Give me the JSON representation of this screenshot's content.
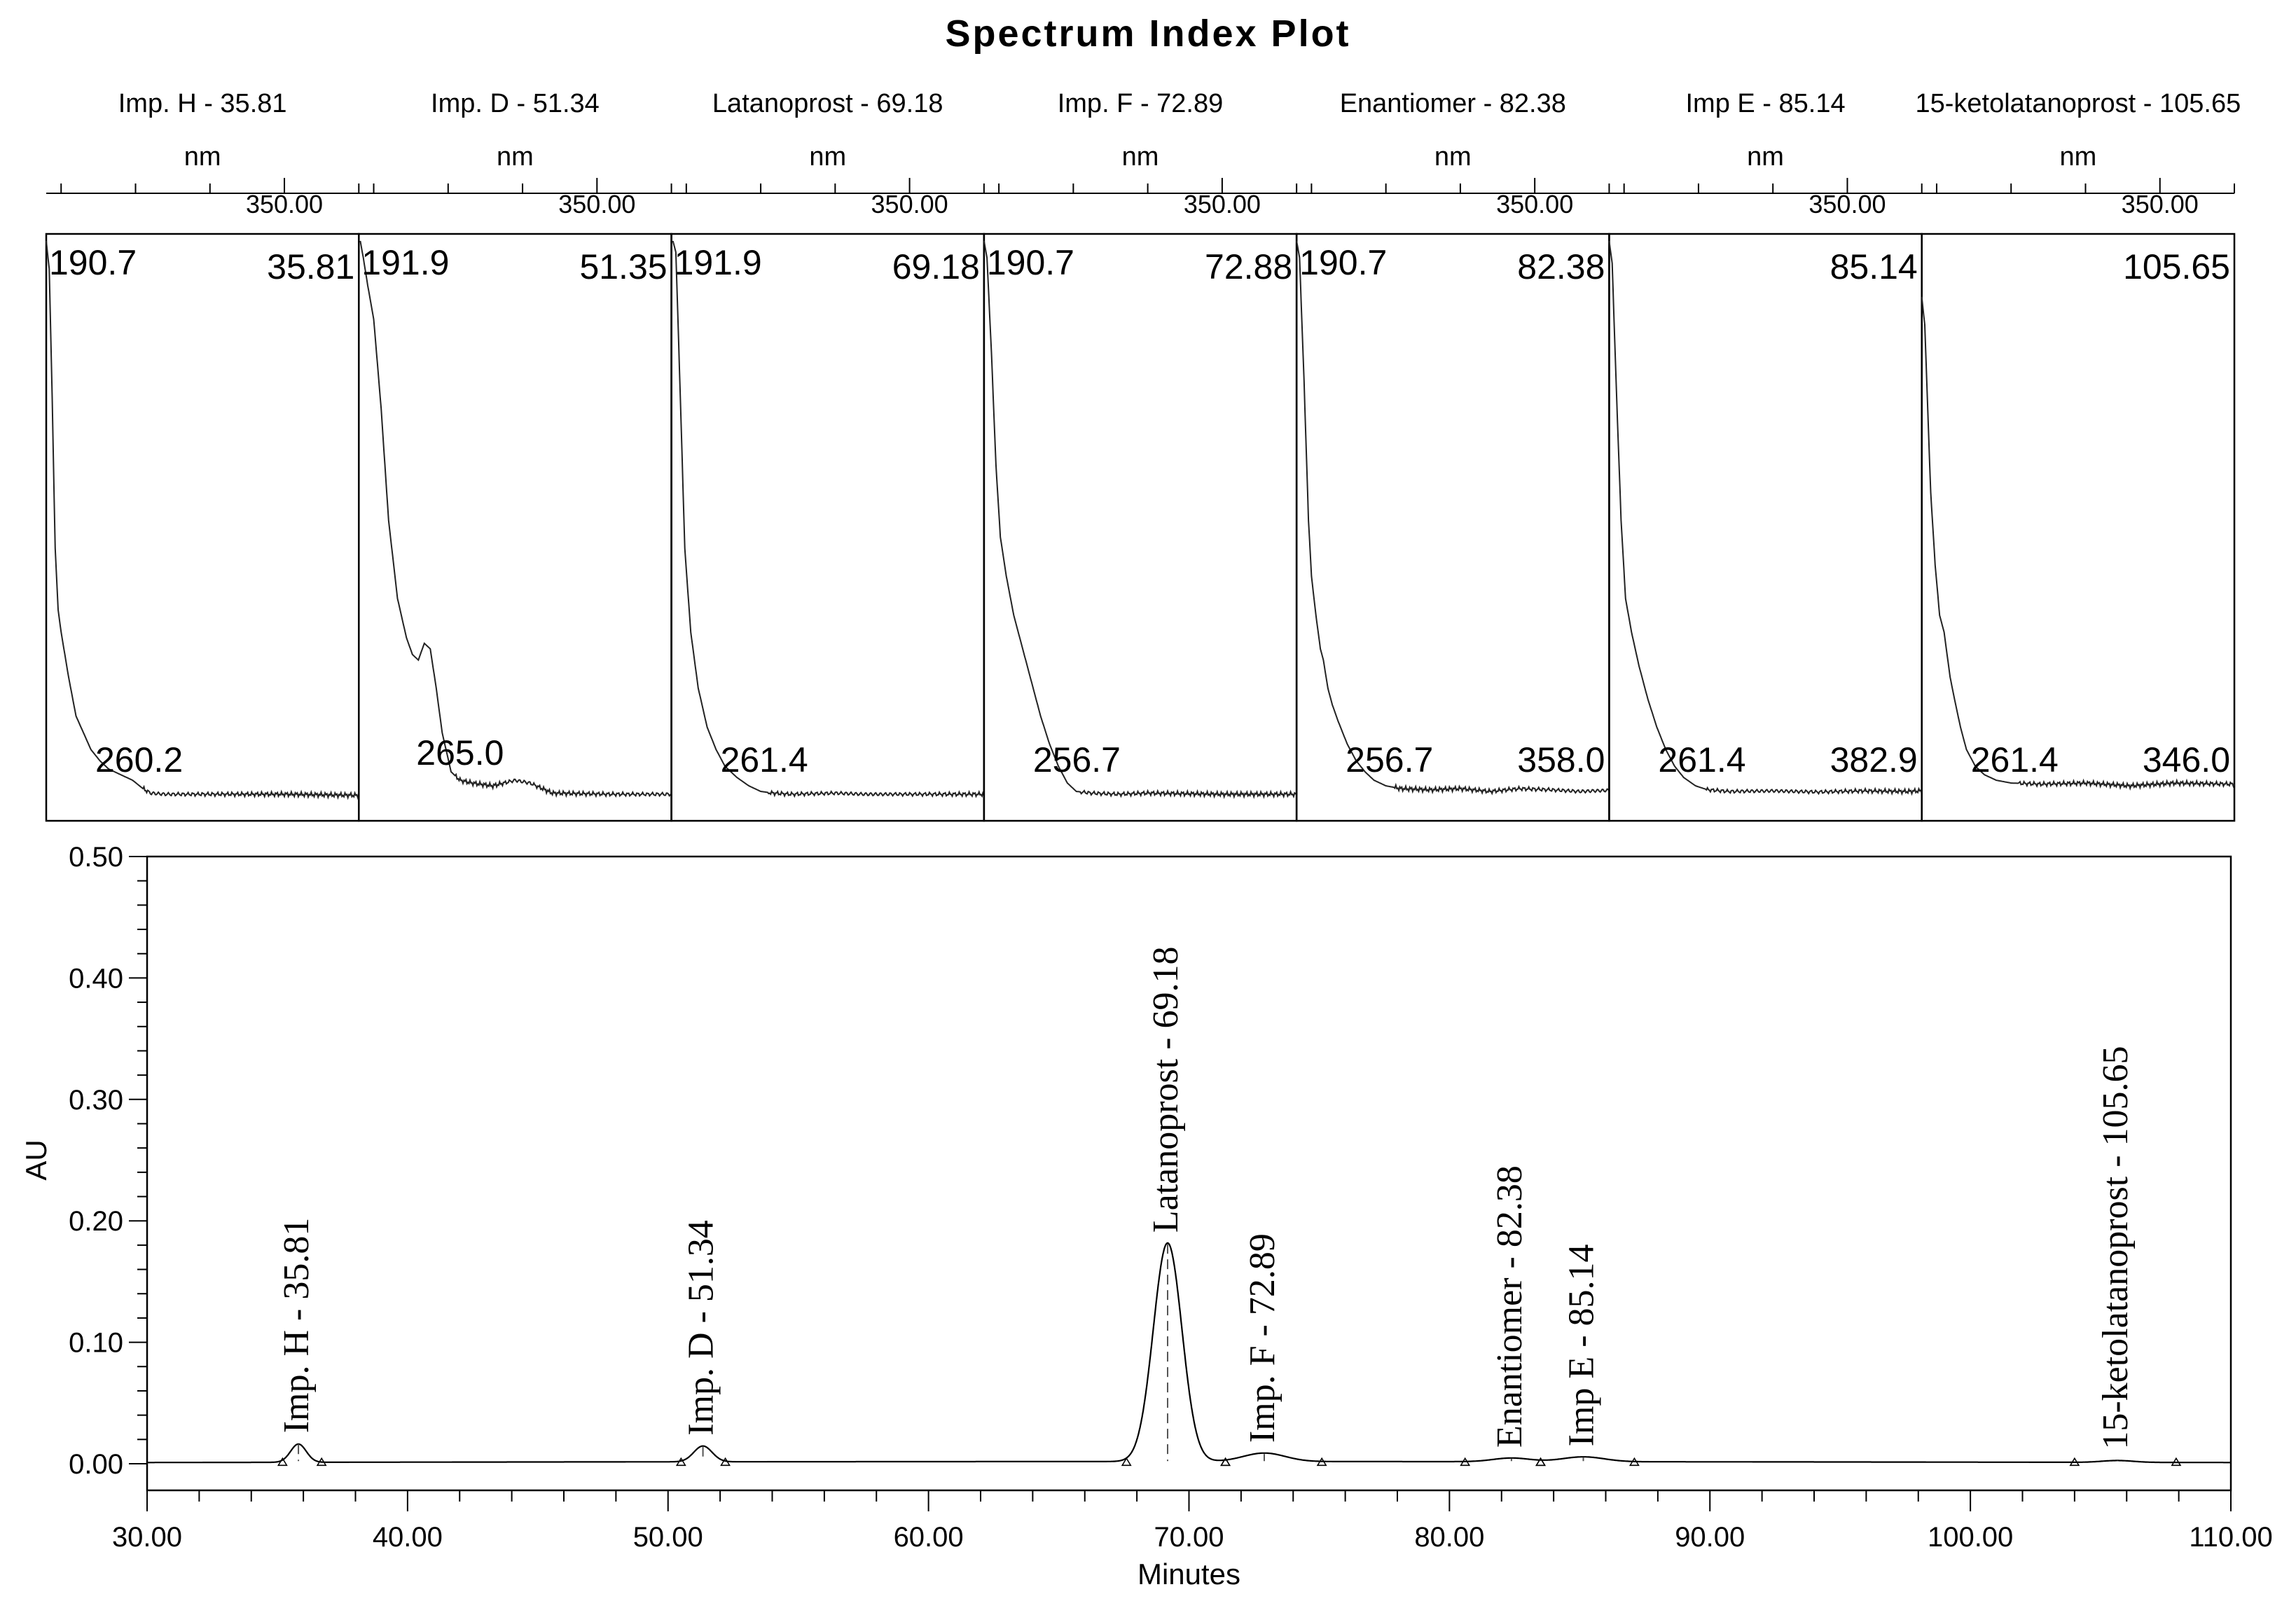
{
  "title": "Spectrum Index Plot",
  "spectra": {
    "unit": "nm",
    "tick_label": "350.00",
    "panels": [
      {
        "header": "Imp. H - 35.81",
        "corner_left": "190.7",
        "corner_right": "35.81",
        "peaks": [
          "260.2"
        ],
        "curve": [
          [
            190,
            1.0
          ],
          [
            192,
            0.95
          ],
          [
            194,
            0.72
          ],
          [
            196,
            0.45
          ],
          [
            198,
            0.34
          ],
          [
            200,
            0.3
          ],
          [
            205,
            0.22
          ],
          [
            210,
            0.15
          ],
          [
            215,
            0.12
          ],
          [
            220,
            0.09
          ],
          [
            226,
            0.07
          ],
          [
            232,
            0.055
          ],
          [
            240,
            0.045
          ],
          [
            248,
            0.035
          ],
          [
            255,
            0.02
          ],
          [
            260,
            0.012
          ],
          [
            270,
            0.01
          ],
          [
            300,
            0.01
          ],
          [
            350,
            0.01
          ],
          [
            400,
            0.008
          ]
        ]
      },
      {
        "header": "Imp. D - 51.34",
        "corner_left": "191.9",
        "corner_right": "51.35",
        "peaks": [
          "265.0"
        ],
        "curve": [
          [
            191,
            1.0
          ],
          [
            193,
            0.97
          ],
          [
            196,
            0.92
          ],
          [
            200,
            0.86
          ],
          [
            205,
            0.7
          ],
          [
            210,
            0.5
          ],
          [
            216,
            0.36
          ],
          [
            222,
            0.29
          ],
          [
            226,
            0.26
          ],
          [
            230,
            0.25
          ],
          [
            234,
            0.28
          ],
          [
            238,
            0.27
          ],
          [
            242,
            0.2
          ],
          [
            246,
            0.12
          ],
          [
            252,
            0.05
          ],
          [
            258,
            0.035
          ],
          [
            266,
            0.03
          ],
          [
            280,
            0.025
          ],
          [
            295,
            0.035
          ],
          [
            305,
            0.03
          ],
          [
            320,
            0.012
          ],
          [
            360,
            0.01
          ],
          [
            400,
            0.01
          ]
        ]
      },
      {
        "header": "Latanoprost - 69.18",
        "corner_left": "191.9",
        "corner_right": "69.18",
        "peaks": [
          "261.4"
        ],
        "curve": [
          [
            191,
            1.0
          ],
          [
            193,
            0.98
          ],
          [
            196,
            0.72
          ],
          [
            199,
            0.45
          ],
          [
            203,
            0.3
          ],
          [
            208,
            0.2
          ],
          [
            214,
            0.13
          ],
          [
            220,
            0.09
          ],
          [
            226,
            0.06
          ],
          [
            234,
            0.04
          ],
          [
            242,
            0.025
          ],
          [
            250,
            0.015
          ],
          [
            258,
            0.012
          ],
          [
            270,
            0.01
          ],
          [
            300,
            0.012
          ],
          [
            320,
            0.01
          ],
          [
            350,
            0.01
          ],
          [
            400,
            0.01
          ]
        ]
      },
      {
        "header": "Imp. F - 72.89",
        "corner_left": "190.7",
        "corner_right": "72.88",
        "peaks": [
          "256.7"
        ],
        "curve": [
          [
            190,
            1.0
          ],
          [
            192,
            0.97
          ],
          [
            195,
            0.8
          ],
          [
            198,
            0.6
          ],
          [
            201,
            0.47
          ],
          [
            205,
            0.4
          ],
          [
            210,
            0.33
          ],
          [
            216,
            0.27
          ],
          [
            222,
            0.21
          ],
          [
            228,
            0.15
          ],
          [
            234,
            0.1
          ],
          [
            240,
            0.06
          ],
          [
            246,
            0.03
          ],
          [
            252,
            0.015
          ],
          [
            262,
            0.012
          ],
          [
            280,
            0.01
          ],
          [
            300,
            0.012
          ],
          [
            350,
            0.01
          ],
          [
            400,
            0.01
          ]
        ]
      },
      {
        "header": "Enantiomer - 82.38",
        "corner_left": "190.7",
        "corner_right": "82.38",
        "peaks": [
          "256.7",
          "358.0"
        ],
        "curve": [
          [
            190,
            1.0
          ],
          [
            192,
            0.97
          ],
          [
            195,
            0.75
          ],
          [
            198,
            0.5
          ],
          [
            200,
            0.4
          ],
          [
            203,
            0.33
          ],
          [
            206,
            0.27
          ],
          [
            208,
            0.25
          ],
          [
            211,
            0.2
          ],
          [
            214,
            0.17
          ],
          [
            218,
            0.14
          ],
          [
            224,
            0.1
          ],
          [
            230,
            0.07
          ],
          [
            236,
            0.05
          ],
          [
            242,
            0.035
          ],
          [
            250,
            0.025
          ],
          [
            260,
            0.02
          ],
          [
            280,
            0.018
          ],
          [
            300,
            0.02
          ],
          [
            320,
            0.015
          ],
          [
            340,
            0.02
          ],
          [
            360,
            0.018
          ],
          [
            380,
            0.015
          ],
          [
            400,
            0.017
          ]
        ]
      },
      {
        "header": "Imp E - 85.14",
        "corner_left": "",
        "corner_right": "85.14",
        "peaks": [
          "261.4",
          "382.9"
        ],
        "curve": [
          [
            190,
            1.0
          ],
          [
            192,
            0.96
          ],
          [
            195,
            0.72
          ],
          [
            198,
            0.5
          ],
          [
            201,
            0.36
          ],
          [
            205,
            0.3
          ],
          [
            210,
            0.24
          ],
          [
            216,
            0.18
          ],
          [
            222,
            0.13
          ],
          [
            228,
            0.09
          ],
          [
            234,
            0.06
          ],
          [
            240,
            0.04
          ],
          [
            248,
            0.025
          ],
          [
            256,
            0.018
          ],
          [
            270,
            0.015
          ],
          [
            300,
            0.016
          ],
          [
            330,
            0.014
          ],
          [
            360,
            0.016
          ],
          [
            390,
            0.015
          ],
          [
            400,
            0.016
          ]
        ]
      },
      {
        "header": "15-ketolatanoprost - 105.65",
        "corner_left": "",
        "corner_right": "105.65",
        "peaks": [
          "261.4",
          "346.0"
        ],
        "curve": [
          [
            190,
            0.9
          ],
          [
            192,
            0.85
          ],
          [
            194,
            0.7
          ],
          [
            196,
            0.55
          ],
          [
            199,
            0.42
          ],
          [
            202,
            0.33
          ],
          [
            205,
            0.3
          ],
          [
            207,
            0.26
          ],
          [
            209,
            0.22
          ],
          [
            212,
            0.18
          ],
          [
            216,
            0.13
          ],
          [
            220,
            0.09
          ],
          [
            226,
            0.06
          ],
          [
            232,
            0.045
          ],
          [
            240,
            0.035
          ],
          [
            250,
            0.03
          ],
          [
            270,
            0.028
          ],
          [
            300,
            0.03
          ],
          [
            330,
            0.025
          ],
          [
            360,
            0.03
          ],
          [
            400,
            0.028
          ]
        ]
      }
    ]
  },
  "chart_data": {
    "type": "line",
    "xlabel": "Minutes",
    "ylabel": "AU",
    "xlim": [
      30.0,
      110.0
    ],
    "ylim": [
      0.0,
      0.5
    ],
    "xticks": [
      "30.00",
      "40.00",
      "50.00",
      "60.00",
      "70.00",
      "80.00",
      "90.00",
      "100.00",
      "110.00"
    ],
    "yticks": [
      "0.00",
      "0.10",
      "0.20",
      "0.30",
      "0.40",
      "0.50"
    ],
    "baseline": 0.001,
    "peaks": [
      {
        "label": "Imp. H - 35.81",
        "rt": 35.81,
        "height": 0.015,
        "width": 0.3,
        "start": 35.2,
        "end": 36.7
      },
      {
        "label": "Imp. D - 51.34",
        "rt": 51.34,
        "height": 0.013,
        "width": 0.35,
        "start": 50.5,
        "end": 52.2
      },
      {
        "label": "Latanoprost - 69.18",
        "rt": 69.18,
        "height": 0.18,
        "width": 0.55,
        "start": 67.6,
        "end": 71.4
      },
      {
        "label": "Imp. F - 72.89",
        "rt": 72.89,
        "height": 0.007,
        "width": 0.8,
        "start": 71.4,
        "end": 75.1
      },
      {
        "label": "Enantiomer - 82.38",
        "rt": 82.38,
        "height": 0.003,
        "width": 0.7,
        "start": 80.6,
        "end": 83.5
      },
      {
        "label": "Imp E - 85.14",
        "rt": 85.14,
        "height": 0.004,
        "width": 0.8,
        "start": 83.5,
        "end": 87.1
      },
      {
        "label": "15-ketolatanoprost - 105.65",
        "rt": 105.65,
        "height": 0.0015,
        "width": 0.6,
        "start": 104.0,
        "end": 107.9
      }
    ]
  }
}
